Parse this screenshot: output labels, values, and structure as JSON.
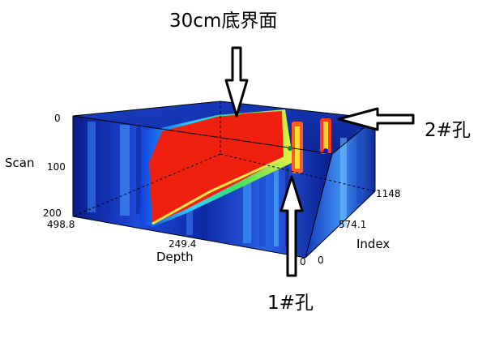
{
  "annotations": {
    "top": "30cm底界面",
    "right": "2#孔",
    "bottom": "1#孔"
  },
  "axes": {
    "scan": {
      "label": "Scan",
      "ticks": [
        "0",
        "100",
        "200"
      ]
    },
    "depth": {
      "label": "Depth",
      "ticks": [
        "498.8",
        "249.4",
        "0"
      ]
    },
    "index": {
      "label": "Index",
      "ticks": [
        "1148",
        "574.1",
        "0"
      ]
    }
  },
  "colors": {
    "background": "#0a1a8c",
    "anomaly": "#f02010",
    "annotation": "#000000"
  }
}
